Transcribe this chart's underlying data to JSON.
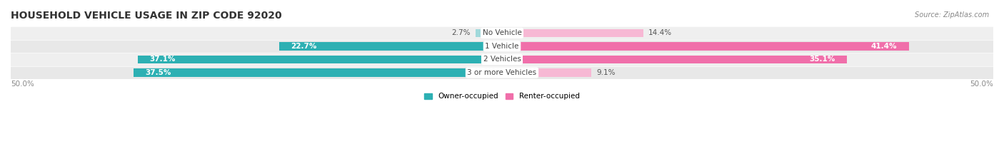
{
  "title": "HOUSEHOLD VEHICLE USAGE IN ZIP CODE 92020",
  "source": "Source: ZipAtlas.com",
  "categories": [
    "No Vehicle",
    "1 Vehicle",
    "2 Vehicles",
    "3 or more Vehicles"
  ],
  "owner_values": [
    2.7,
    22.7,
    37.1,
    37.5
  ],
  "renter_values": [
    14.4,
    41.4,
    35.1,
    9.1
  ],
  "owner_color_dark": "#2db0b3",
  "owner_color_light": "#a0d9db",
  "renter_color_dark": "#f06faa",
  "renter_color_light": "#f7b8d4",
  "axis_limit": 50.0,
  "legend_owner": "Owner-occupied",
  "legend_renter": "Renter-occupied",
  "title_fontsize": 10,
  "label_fontsize": 7.5,
  "tick_fontsize": 7.5,
  "source_fontsize": 7,
  "row_colors": [
    "#efefef",
    "#e8e8e8",
    "#efefef",
    "#e8e8e8"
  ]
}
